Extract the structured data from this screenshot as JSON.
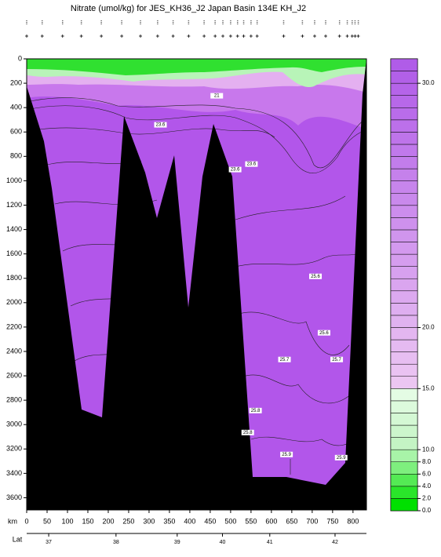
{
  "chart_data": {
    "type": "section",
    "title": "Nitrate (umol/kg) for JES_KH36_J2 Japan Basin 134E KH_J2",
    "xlabel": "km",
    "x2label": "Lat",
    "xlim": [
      0,
      833
    ],
    "ylim": [
      3700,
      0
    ],
    "xticks": [
      0,
      50,
      100,
      150,
      200,
      250,
      300,
      350,
      400,
      450,
      500,
      550,
      600,
      650,
      700,
      750,
      800
    ],
    "yticks": [
      0,
      200,
      400,
      600,
      800,
      1000,
      1200,
      1400,
      1600,
      1800,
      2000,
      2200,
      2400,
      2600,
      2800,
      3000,
      3200,
      3400,
      3600
    ],
    "x2ticks": [
      {
        "value": 54,
        "label": "37"
      },
      {
        "value": 219,
        "label": "38"
      },
      {
        "value": 369,
        "label": "39"
      },
      {
        "value": 480,
        "label": "40"
      },
      {
        "value": 596,
        "label": "41"
      },
      {
        "value": 756,
        "label": "42"
      }
    ],
    "stations": [
      0,
      38,
      88,
      134,
      183,
      233,
      279,
      321,
      359,
      397,
      435,
      462,
      481,
      500,
      517,
      532,
      550,
      565,
      630,
      676,
      706,
      733,
      767,
      786,
      798,
      805,
      813
    ],
    "contour_labels": [
      {
        "text": "25.6",
        "x": 708,
        "y": 1784
      },
      {
        "text": "25.6",
        "x": 729,
        "y": 2247
      },
      {
        "text": "25.7",
        "x": 632,
        "y": 2466
      },
      {
        "text": "25.7",
        "x": 760,
        "y": 2466
      },
      {
        "text": "25.8",
        "x": 561,
        "y": 2885
      },
      {
        "text": "25.8",
        "x": 542,
        "y": 3065
      },
      {
        "text": "25.9",
        "x": 637,
        "y": 3245
      },
      {
        "text": "25.9",
        "x": 771,
        "y": 3271
      },
      {
        "text": "23.6",
        "x": 328,
        "y": 541
      },
      {
        "text": "23.6",
        "x": 551,
        "y": 863
      },
      {
        "text": "23.6",
        "x": 511,
        "y": 908
      },
      {
        "text": "21",
        "x": 466,
        "y": 303
      }
    ],
    "colorbar": {
      "levels": [
        0,
        2,
        4,
        6,
        8,
        10,
        11,
        12,
        13,
        14,
        15,
        16,
        17,
        18,
        19,
        20,
        20.5,
        21,
        21.5,
        22,
        22.5,
        23,
        23.5,
        24,
        24.5,
        25,
        25.5,
        26,
        26.5,
        27,
        27.5,
        28,
        28.5,
        29,
        29.5,
        30,
        30.5,
        31
      ],
      "ticks": [
        {
          "value": 0,
          "label": "0.0"
        },
        {
          "value": 2,
          "label": "2.0"
        },
        {
          "value": 4,
          "label": "4.0"
        },
        {
          "value": 6,
          "label": "6.0"
        },
        {
          "value": 8,
          "label": "8.0"
        },
        {
          "value": 10,
          "label": "10.0"
        },
        {
          "value": 15,
          "label": "15.0"
        },
        {
          "value": 20,
          "label": "20.0"
        },
        {
          "value": 30,
          "label": "30.0"
        }
      ]
    }
  }
}
